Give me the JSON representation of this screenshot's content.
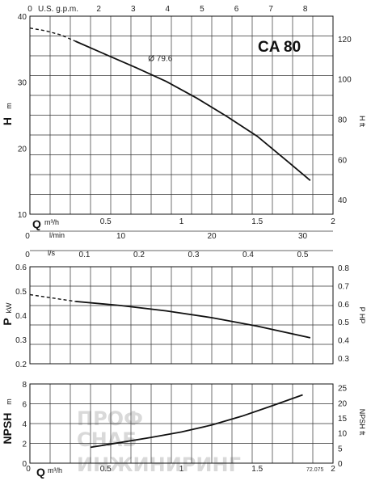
{
  "chart_data": [
    {
      "type": "line",
      "id": "head",
      "title": "CA 80",
      "ylabel": "H",
      "ylabel_unit": "m",
      "ylabel_right": "H",
      "ylabel_right_unit": "ft",
      "xlabel_bottom": "Q",
      "xlabel_bottom_unit": "m³/h",
      "xlabel_top": "U.S. g.p.m.",
      "xlabel_lmin": "l/min",
      "ylim": [
        10,
        40
      ],
      "xlim": [
        0,
        2.0
      ],
      "yticks": [
        "10",
        "20",
        "30",
        "40"
      ],
      "yticks_right": [
        "40",
        "60",
        "80",
        "100",
        "120"
      ],
      "top_ticks": [
        "0",
        "2",
        "3",
        "4",
        "5",
        "6",
        "7",
        "8"
      ],
      "top_tick_first": "0",
      "bottom_ticks": [
        "0.5",
        "1",
        "1.5",
        "2"
      ],
      "lmin_ticks": [
        "0",
        "10",
        "20",
        "30"
      ],
      "series": [
        {
          "name": "Ø 79.6",
          "dashed_x": [
            0.0,
            0.1,
            0.2,
            0.3
          ],
          "dashed_y": [
            38.2,
            37.8,
            37.2,
            36.2
          ],
          "x": [
            0.3,
            0.5,
            0.7,
            0.9,
            1.1,
            1.3,
            1.5,
            1.7,
            1.85
          ],
          "y": [
            36.2,
            34.2,
            32.2,
            30.1,
            27.6,
            24.8,
            21.8,
            18.0,
            15.1
          ]
        }
      ]
    },
    {
      "type": "line",
      "id": "power",
      "ylabel": "P",
      "ylabel_unit": "kW",
      "ylabel_right": "P",
      "ylabel_right_unit": "HP",
      "xlabel_ls": "l/s",
      "ls_ticks": [
        "0.1",
        "0.2",
        "0.3",
        "0.4",
        "0.5"
      ],
      "ls_tick_first": "0",
      "ylim": [
        0.2,
        0.6
      ],
      "yticks": [
        "0.2",
        "0.3",
        "0.4",
        "0.5",
        "0.6"
      ],
      "yticks_right": [
        "0.3",
        "0.4",
        "0.5",
        "0.6",
        "0.7",
        "0.8"
      ],
      "series": [
        {
          "dashed_x": [
            0.0,
            0.15,
            0.3
          ],
          "dashed_y": [
            0.485,
            0.471,
            0.457
          ],
          "x": [
            0.3,
            0.6,
            0.9,
            1.2,
            1.5,
            1.85
          ],
          "y": [
            0.457,
            0.44,
            0.418,
            0.39,
            0.355,
            0.307
          ]
        }
      ]
    },
    {
      "type": "line",
      "id": "npsh",
      "ylabel": "NPSH",
      "ylabel_unit": "m",
      "ylabel_right": "NPSH",
      "ylabel_right_unit": "ft",
      "xlabel_bottom": "Q",
      "xlabel_bottom_unit": "m³/h",
      "ylim": [
        0,
        8
      ],
      "yticks": [
        "0",
        "2",
        "4",
        "6",
        "8"
      ],
      "yticks_right": [
        "0",
        "5",
        "10",
        "15",
        "20",
        "25"
      ],
      "bottom_ticks": [
        "0",
        "0.5",
        "1",
        "1.5",
        "2"
      ],
      "series": [
        {
          "x": [
            0.4,
            0.6,
            0.8,
            1.0,
            1.2,
            1.4,
            1.6,
            1.8
          ],
          "y": [
            1.6,
            2.1,
            2.6,
            3.15,
            3.85,
            4.75,
            5.8,
            6.9
          ]
        }
      ]
    }
  ],
  "footnote": "72.075",
  "watermark": {
    "line1": "ПРОФ",
    "line2": "СНАБ",
    "line3": "ИНЖИНИРИНГ"
  }
}
